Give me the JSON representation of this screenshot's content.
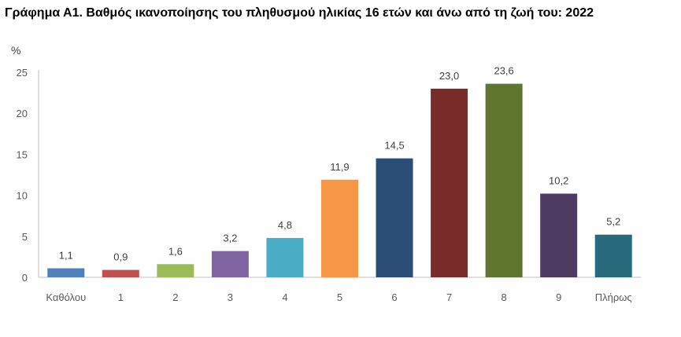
{
  "chart_data": {
    "type": "bar",
    "title": "Γράφημα Α1. Βαθμός ικανοποίησης του πληθυσμού ηλικίας 16 ετών και άνω από τη ζωή του: 2022",
    "ylabel": "%",
    "xlabel": "",
    "ylim": [
      0,
      25
    ],
    "yticks": [
      0,
      5,
      10,
      15,
      20,
      25
    ],
    "grid": false,
    "categories": [
      "Καθόλου",
      "1",
      "2",
      "3",
      "4",
      "5",
      "6",
      "7",
      "8",
      "9",
      "Πλήρως"
    ],
    "values": [
      1.1,
      0.9,
      1.6,
      3.2,
      4.8,
      11.9,
      14.5,
      23.0,
      23.6,
      10.2,
      5.2
    ],
    "data_labels": [
      "1,1",
      "0,9",
      "1,6",
      "3,2",
      "4,8",
      "11,9",
      "14,5",
      "23,0",
      "23,6",
      "10,2",
      "5,2"
    ],
    "colors": [
      "#4f81bd",
      "#c0504d",
      "#9bbb59",
      "#8064a2",
      "#4bacc6",
      "#f79646",
      "#2c4d75",
      "#772c2a",
      "#5f7530",
      "#4d3b62",
      "#276a7c"
    ]
  }
}
